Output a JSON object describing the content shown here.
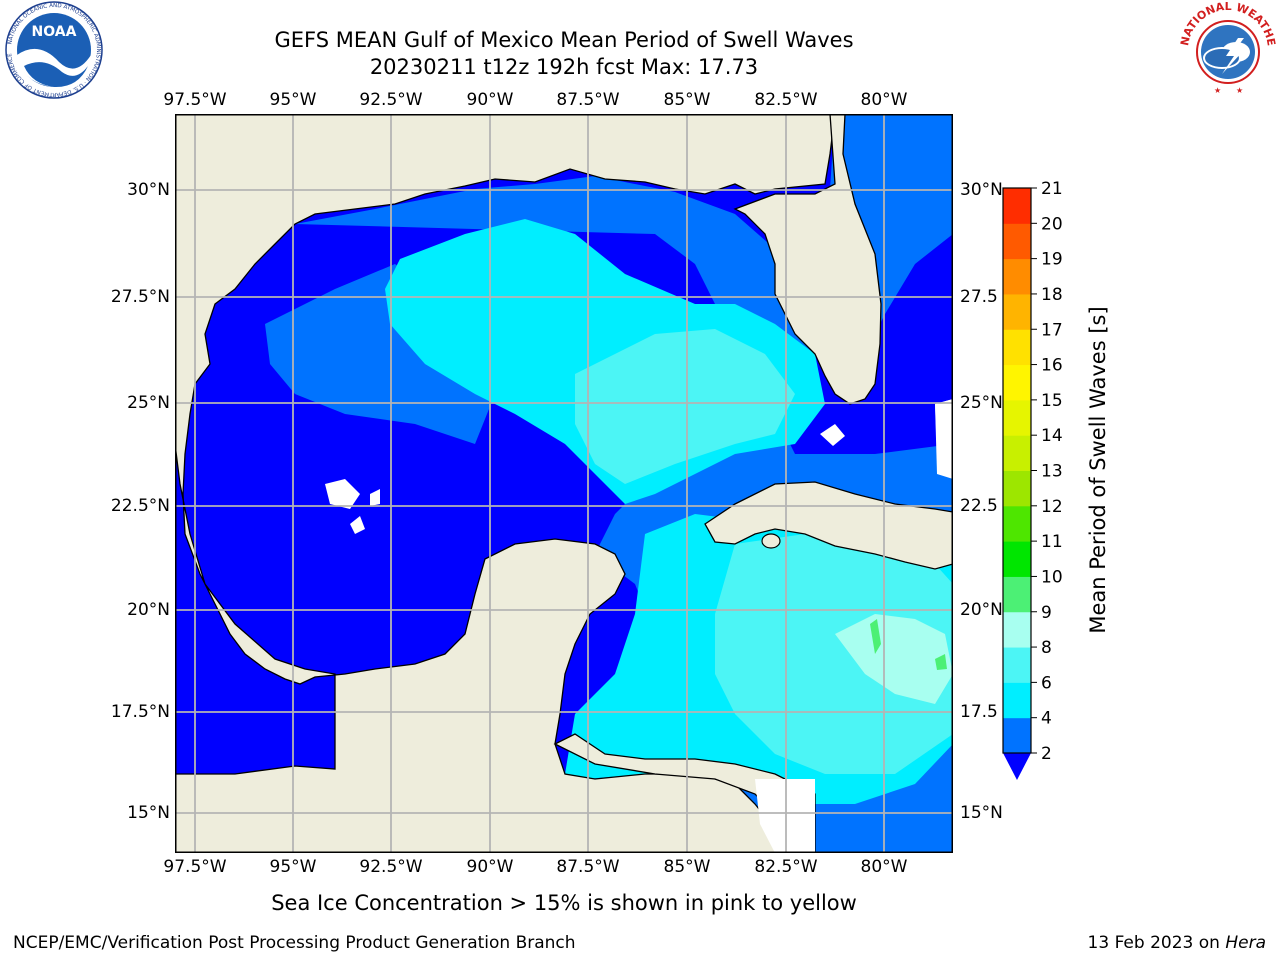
{
  "title": {
    "line1": "GEFS MEAN Gulf of Mexico Mean Period of Swell Waves",
    "line2": "20230211 t12z 192h fcst   Max: 17.73"
  },
  "map": {
    "lon_ticks": [
      "97.5°W",
      "95°W",
      "92.5°W",
      "90°W",
      "87.5°W",
      "85°W",
      "82.5°W",
      "80°W"
    ],
    "lat_ticks_left": [
      "30°N",
      "27.5°N",
      "25°N",
      "22.5°N",
      "20°N",
      "17.5°N",
      "15°N"
    ],
    "lat_ticks_right": [
      "30°N",
      "27.5",
      "25°N",
      "22.5",
      "20°N",
      "17.5",
      "15°N"
    ],
    "colors": {
      "land": "#eeeddc",
      "grid": "#b4b4b4",
      "coast": "#000000"
    }
  },
  "colorbar": {
    "ticks": [
      "2",
      "4",
      "6",
      "8",
      "9",
      "10",
      "11",
      "12",
      "13",
      "14",
      "15",
      "16",
      "17",
      "18",
      "19",
      "20",
      "21"
    ],
    "colors": [
      "#0073ff",
      "#00eeff",
      "#4cf5f5",
      "#a8fff0",
      "#4cf075",
      "#00e600",
      "#4ee600",
      "#9de600",
      "#c8f000",
      "#e6f500",
      "#fff500",
      "#ffe100",
      "#ffb400",
      "#ff8c00",
      "#ff5a00",
      "#ff2d00",
      "#ff0000"
    ],
    "under_color": "#0000ff",
    "label": "Mean Period of Swell Waves [s]"
  },
  "caption": "Sea Ice Concentration > 15% is shown in pink to yellow",
  "footer": {
    "left": "NCEP/EMC/Verification Post Processing Product Generation Branch",
    "right_prefix": "13 Feb 2023 on ",
    "right_host": "Hera"
  },
  "logos": {
    "noaa": "NOAA",
    "noaa_ring": "NATIONAL OCEANIC AND ATMOSPHERIC ADMINISTRATION · U.S. DEPARTMENT OF COMMERCE",
    "nws_ring": "NATIONAL WEATHER SERVICE"
  }
}
